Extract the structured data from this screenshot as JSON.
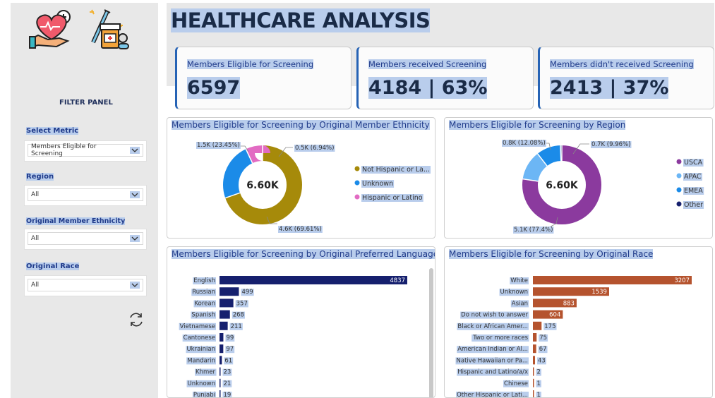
{
  "header": {
    "title": "HEALTHCARE ANALYSIS"
  },
  "filter_panel": {
    "title": "FILTER PANEL",
    "filters": [
      {
        "label": "Select Metric",
        "value": "Members Eligible for Screening"
      },
      {
        "label": "Region",
        "value": "All"
      },
      {
        "label": "Original Member Ethnicity",
        "value": "All"
      },
      {
        "label": "Original Race",
        "value": "All"
      }
    ]
  },
  "kpis": [
    {
      "label": "Members Eligible for Screening",
      "value": "6597"
    },
    {
      "label": "Members received Screening",
      "value": "4184 | 63%"
    },
    {
      "label": "Members didn't received Screening",
      "value": "2413 | 37%"
    }
  ],
  "colors": {
    "accent": "#2663b5",
    "navy_bar": "#16206e",
    "orange_bar": "#b5532e"
  },
  "chart_data": [
    {
      "type": "donut",
      "title": "Members Eligible for Screening by Original Member Ethnicity",
      "center_label": "6.60K",
      "slices": [
        {
          "name": "Not Hispanic or La...",
          "value": 4.6,
          "label": "4.6K (69.61%)",
          "pct": 69.61,
          "color": "#a68a0a"
        },
        {
          "name": "Unknown",
          "value": 1.5,
          "label": "1.5K (23.45%)",
          "pct": 23.45,
          "color": "#1b8be8"
        },
        {
          "name": "Hispanic or Latino",
          "value": 0.5,
          "label": "0.5K (6.94%)",
          "pct": 6.94,
          "color": "#e26bc3"
        }
      ]
    },
    {
      "type": "donut",
      "title": "Members Eligible for Screening by Region",
      "center_label": "6.60K",
      "slices": [
        {
          "name": "USCA",
          "value": 5.1,
          "label": "5.1K (77.4%)",
          "pct": 77.4,
          "color": "#8b3a9e"
        },
        {
          "name": "APAC",
          "value": 0.8,
          "label": "0.8K (12.08%)",
          "pct": 12.08,
          "color": "#6cb6f5"
        },
        {
          "name": "EMEA",
          "value": 0.7,
          "label": "0.7K (9.96%)",
          "pct": 9.96,
          "color": "#1b8be8"
        },
        {
          "name": "Other",
          "value": 0.04,
          "label": "",
          "pct": 0.56,
          "color": "#16206e"
        }
      ]
    },
    {
      "type": "bar",
      "orientation": "horizontal",
      "title": "Members Eligible for Screening by Original Preferred Language",
      "categories": [
        "English",
        "Russian",
        "Korean",
        "Spanish",
        "Vietnamese",
        "Cantonese",
        "Ukrainian",
        "Mandarin",
        "Khmer",
        "Unknown",
        "Punjabi"
      ],
      "values": [
        4837,
        499,
        357,
        268,
        211,
        99,
        97,
        61,
        23,
        21,
        19
      ],
      "xlim": [
        0,
        4837
      ]
    },
    {
      "type": "bar",
      "orientation": "horizontal",
      "title": "Members Eligible for Screening by Original Race",
      "categories": [
        "White",
        "Unknown",
        "Asian",
        "Do not wish to answer",
        "Black or African Amer...",
        "Two or more races",
        "American Indian or Al...",
        "Native Hawaiian or Pa...",
        "Hispanic and Latino/a/x",
        "Chinese",
        "Other Hispanic or Lati..."
      ],
      "values": [
        3207,
        1539,
        883,
        604,
        175,
        75,
        67,
        43,
        2,
        1,
        1
      ],
      "xlim": [
        0,
        3207
      ]
    }
  ]
}
